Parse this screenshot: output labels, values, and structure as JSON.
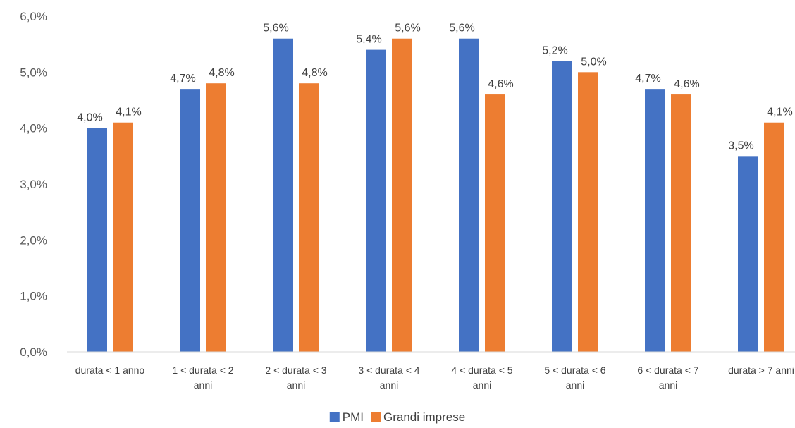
{
  "chart_data": {
    "type": "bar",
    "categories": [
      [
        "durata < 1 anno"
      ],
      [
        "1 < durata < 2",
        "anni"
      ],
      [
        "2 < durata < 3",
        "anni"
      ],
      [
        "3 < durata < 4",
        "anni"
      ],
      [
        "4 < durata < 5",
        "anni"
      ],
      [
        "5 < durata < 6",
        "anni"
      ],
      [
        "6 < durata < 7",
        "anni"
      ],
      [
        "durata > 7 anni"
      ]
    ],
    "series": [
      {
        "name": "PMI",
        "color": "#4472C4",
        "values": [
          4.0,
          4.7,
          5.6,
          5.4,
          5.6,
          5.2,
          4.7,
          3.5
        ],
        "labels": [
          "4,0%",
          "4,7%",
          "5,6%",
          "5,4%",
          "5,6%",
          "5,2%",
          "4,7%",
          "3,5%"
        ]
      },
      {
        "name": "Grandi imprese",
        "color": "#ED7D31",
        "values": [
          4.1,
          4.8,
          4.8,
          5.6,
          4.6,
          5.0,
          4.6,
          4.1
        ],
        "labels": [
          "4,1%",
          "4,8%",
          "4,8%",
          "5,6%",
          "4,6%",
          "5,0%",
          "4,6%",
          "4,1%"
        ]
      }
    ],
    "y_ticks": [
      "0,0%",
      "1,0%",
      "2,0%",
      "3,0%",
      "4,0%",
      "5,0%",
      "6,0%"
    ],
    "ylim": [
      0,
      6
    ],
    "title": "",
    "xlabel": "",
    "ylabel": "",
    "grid": false,
    "legend_position": "bottom"
  }
}
